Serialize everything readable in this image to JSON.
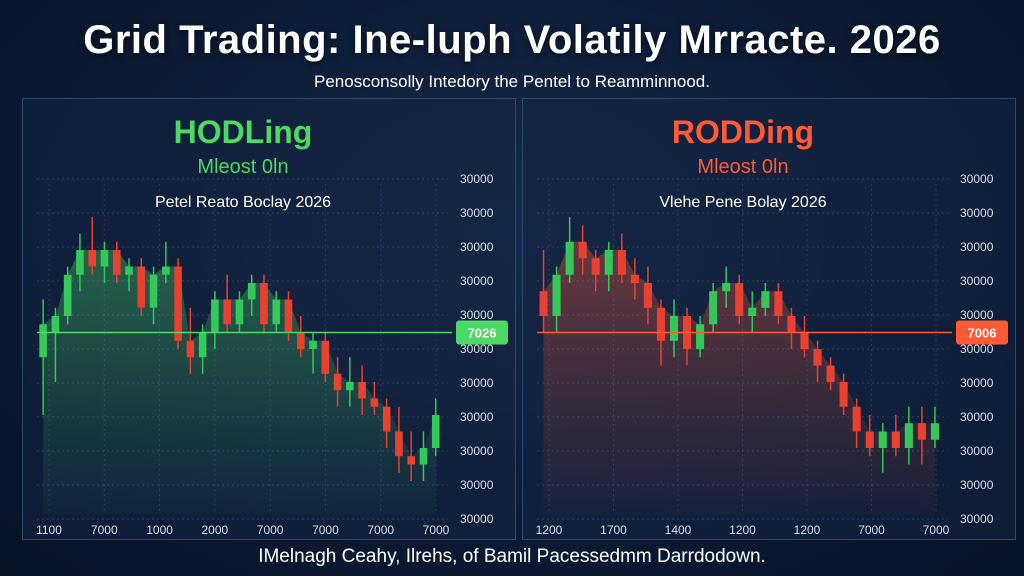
{
  "header": {
    "title": "Grid Trading: Ine-luph Volatily Mrracte. 2026",
    "subtitle": "Penosconsolly Intedory the Pentel to Reamminnood."
  },
  "footer": {
    "text": "IMelnagh Ceahy, Ilrehs, of Bamil Pacessedmm Darrdodown."
  },
  "colors": {
    "background": "#0c1a33",
    "panel_border": "#2d4670",
    "up": "#34c759",
    "down": "#e8412f",
    "hodl_accent": "#4cd964",
    "red_accent": "#ff5a36",
    "axis_text": "#d7dfeb"
  },
  "chart_data": [
    {
      "type": "candlestick",
      "title": "HODLing",
      "subtitle": "Mleost 0ln",
      "legend_label": "Petel Reato Boclay 2026",
      "highlight_label": "7026",
      "highlight_value": 30200,
      "accent": "#4cd964",
      "x_ticks": [
        "1100",
        "7000",
        "1000",
        "2000",
        "7000",
        "7000",
        "7000",
        "7000"
      ],
      "y_ticks": [
        "30000",
        "30000",
        "30000",
        "30000",
        "30000",
        "30000",
        "30000",
        "30000",
        "30000",
        "30000",
        "30000"
      ],
      "ylim": [
        28000,
        32000
      ],
      "candles": [
        {
          "o": 29900,
          "h": 30600,
          "l": 29200,
          "c": 30300
        },
        {
          "o": 30200,
          "h": 30500,
          "l": 29600,
          "c": 30400
        },
        {
          "o": 30400,
          "h": 31000,
          "l": 30300,
          "c": 30900
        },
        {
          "o": 30900,
          "h": 31400,
          "l": 30700,
          "c": 31200
        },
        {
          "o": 31200,
          "h": 31600,
          "l": 30900,
          "c": 31000
        },
        {
          "o": 31000,
          "h": 31300,
          "l": 30800,
          "c": 31200
        },
        {
          "o": 31200,
          "h": 31300,
          "l": 30800,
          "c": 30900
        },
        {
          "o": 30900,
          "h": 31100,
          "l": 30700,
          "c": 31000
        },
        {
          "o": 31000,
          "h": 31100,
          "l": 30400,
          "c": 30500
        },
        {
          "o": 30500,
          "h": 31000,
          "l": 30300,
          "c": 30900
        },
        {
          "o": 30900,
          "h": 31300,
          "l": 30800,
          "c": 31000
        },
        {
          "o": 31000,
          "h": 31100,
          "l": 30000,
          "c": 30100
        },
        {
          "o": 30100,
          "h": 30500,
          "l": 29700,
          "c": 29900
        },
        {
          "o": 29900,
          "h": 30300,
          "l": 29700,
          "c": 30200
        },
        {
          "o": 30200,
          "h": 30700,
          "l": 30000,
          "c": 30600
        },
        {
          "o": 30600,
          "h": 30900,
          "l": 30200,
          "c": 30300
        },
        {
          "o": 30300,
          "h": 30700,
          "l": 30200,
          "c": 30600
        },
        {
          "o": 30600,
          "h": 30900,
          "l": 30400,
          "c": 30800
        },
        {
          "o": 30800,
          "h": 30900,
          "l": 30200,
          "c": 30300
        },
        {
          "o": 30300,
          "h": 30700,
          "l": 30200,
          "c": 30600
        },
        {
          "o": 30600,
          "h": 30700,
          "l": 30100,
          "c": 30200
        },
        {
          "o": 30200,
          "h": 30400,
          "l": 29900,
          "c": 30000
        },
        {
          "o": 30000,
          "h": 30200,
          "l": 29700,
          "c": 30100
        },
        {
          "o": 30100,
          "h": 30200,
          "l": 29600,
          "c": 29700
        },
        {
          "o": 29700,
          "h": 29900,
          "l": 29300,
          "c": 29500
        },
        {
          "o": 29500,
          "h": 29900,
          "l": 29300,
          "c": 29600
        },
        {
          "o": 29600,
          "h": 29800,
          "l": 29200,
          "c": 29400
        },
        {
          "o": 29400,
          "h": 29600,
          "l": 29200,
          "c": 29300
        },
        {
          "o": 29300,
          "h": 29400,
          "l": 28800,
          "c": 29000
        },
        {
          "o": 29000,
          "h": 29300,
          "l": 28500,
          "c": 28700
        },
        {
          "o": 28700,
          "h": 29000,
          "l": 28400,
          "c": 28600
        },
        {
          "o": 28600,
          "h": 29000,
          "l": 28400,
          "c": 28800
        },
        {
          "o": 28800,
          "h": 29400,
          "l": 28700,
          "c": 29200
        }
      ]
    },
    {
      "type": "candlestick",
      "title": "RODDing",
      "subtitle": "Mleost 0ln",
      "legend_label": "Vlehe Pene Bolay 2026",
      "highlight_label": "7006",
      "highlight_value": 30200,
      "accent": "#ff5a36",
      "x_ticks": [
        "1200",
        "1700",
        "1400",
        "1200",
        "1200",
        "7000",
        "7000"
      ],
      "y_ticks": [
        "30000",
        "30000",
        "30000",
        "30000",
        "30000",
        "30000",
        "30000",
        "30000",
        "30000",
        "30000",
        "30000"
      ],
      "ylim": [
        28000,
        32000
      ],
      "candles": [
        {
          "o": 30700,
          "h": 31200,
          "l": 30200,
          "c": 30400
        },
        {
          "o": 30400,
          "h": 31000,
          "l": 30200,
          "c": 30900
        },
        {
          "o": 30900,
          "h": 31600,
          "l": 30800,
          "c": 31300
        },
        {
          "o": 31300,
          "h": 31500,
          "l": 30900,
          "c": 31100
        },
        {
          "o": 31100,
          "h": 31200,
          "l": 30700,
          "c": 30900
        },
        {
          "o": 30900,
          "h": 31300,
          "l": 30700,
          "c": 31200
        },
        {
          "o": 31200,
          "h": 31400,
          "l": 30800,
          "c": 30900
        },
        {
          "o": 30900,
          "h": 31100,
          "l": 30600,
          "c": 30800
        },
        {
          "o": 30800,
          "h": 31000,
          "l": 30300,
          "c": 30500
        },
        {
          "o": 30500,
          "h": 30600,
          "l": 29800,
          "c": 30100
        },
        {
          "o": 30100,
          "h": 30600,
          "l": 29900,
          "c": 30400
        },
        {
          "o": 30400,
          "h": 30500,
          "l": 29800,
          "c": 30000
        },
        {
          "o": 30000,
          "h": 30400,
          "l": 29900,
          "c": 30300
        },
        {
          "o": 30300,
          "h": 30800,
          "l": 30200,
          "c": 30700
        },
        {
          "o": 30700,
          "h": 31000,
          "l": 30500,
          "c": 30800
        },
        {
          "o": 30800,
          "h": 30900,
          "l": 30300,
          "c": 30400
        },
        {
          "o": 30400,
          "h": 30700,
          "l": 30200,
          "c": 30500
        },
        {
          "o": 30500,
          "h": 30800,
          "l": 30400,
          "c": 30700
        },
        {
          "o": 30700,
          "h": 30800,
          "l": 30300,
          "c": 30400
        },
        {
          "o": 30400,
          "h": 30500,
          "l": 30000,
          "c": 30200
        },
        {
          "o": 30200,
          "h": 30400,
          "l": 29900,
          "c": 30000
        },
        {
          "o": 30000,
          "h": 30100,
          "l": 29600,
          "c": 29800
        },
        {
          "o": 29800,
          "h": 29900,
          "l": 29500,
          "c": 29600
        },
        {
          "o": 29600,
          "h": 29700,
          "l": 29200,
          "c": 29300
        },
        {
          "o": 29300,
          "h": 29400,
          "l": 28800,
          "c": 29000
        },
        {
          "o": 29000,
          "h": 29200,
          "l": 28700,
          "c": 28800
        },
        {
          "o": 28800,
          "h": 29100,
          "l": 28500,
          "c": 29000
        },
        {
          "o": 29000,
          "h": 29200,
          "l": 28700,
          "c": 28800
        },
        {
          "o": 28800,
          "h": 29300,
          "l": 28600,
          "c": 29100
        },
        {
          "o": 29100,
          "h": 29300,
          "l": 28600,
          "c": 28900
        },
        {
          "o": 28900,
          "h": 29300,
          "l": 28800,
          "c": 29100
        }
      ]
    }
  ]
}
